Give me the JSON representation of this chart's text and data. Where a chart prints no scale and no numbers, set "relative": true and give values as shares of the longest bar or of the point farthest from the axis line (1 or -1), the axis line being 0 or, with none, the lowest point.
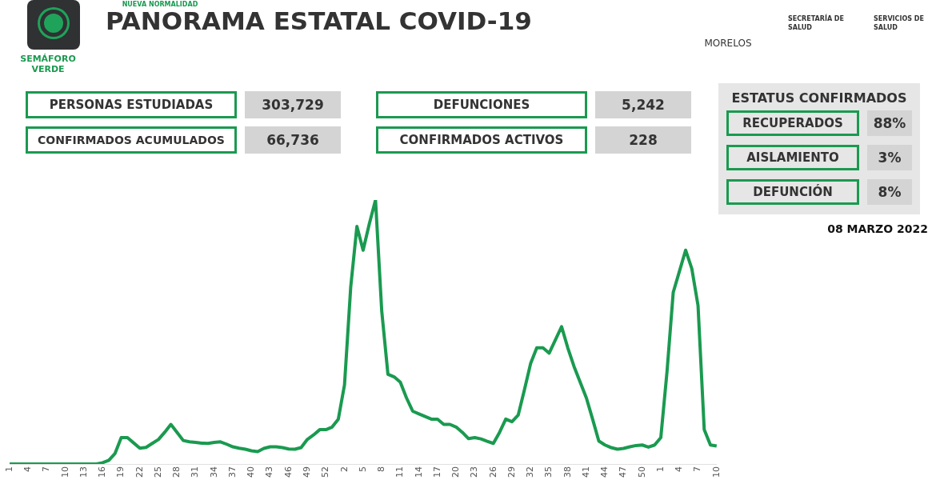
{
  "chart_data": {
    "type": "line",
    "relative": true,
    "title": "PANORAMA ESTATAL COVID-19",
    "color": "#1a9a50",
    "marker": "none",
    "line_style": "solid",
    "grid": false,
    "legend": false,
    "tick_labels": "x",
    "categories": [
      "1",
      null,
      null,
      "4",
      null,
      null,
      "7",
      null,
      null,
      "10",
      null,
      null,
      "13",
      null,
      null,
      "16",
      null,
      null,
      "19",
      null,
      null,
      "22",
      null,
      null,
      "25",
      null,
      null,
      "28",
      null,
      null,
      "31",
      null,
      null,
      "34",
      null,
      null,
      "37",
      null,
      null,
      "40",
      null,
      null,
      "43",
      null,
      null,
      "46",
      null,
      null,
      "49",
      null,
      null,
      "52",
      null,
      null,
      "2",
      null,
      null,
      "5",
      null,
      null,
      "8",
      null,
      null,
      "11",
      null,
      null,
      "14",
      null,
      null,
      "17",
      null,
      null,
      "20",
      null,
      null,
      "23",
      null,
      null,
      "26",
      null,
      null,
      "29",
      null,
      null,
      "32",
      null,
      null,
      "35",
      null,
      null,
      "38",
      null,
      null,
      "41",
      null,
      null,
      "44",
      null,
      null,
      "47",
      null,
      null,
      "50",
      null,
      null,
      "1",
      null,
      null,
      "4",
      null,
      null,
      "7",
      null,
      null,
      "10"
    ],
    "values": [
      0,
      0,
      0,
      0,
      0,
      0,
      0,
      0,
      0,
      0,
      0,
      0,
      0,
      0,
      0,
      0.005,
      0.014,
      0.04,
      0.1,
      0.1,
      0.08,
      0.06,
      0.063,
      0.078,
      0.093,
      0.12,
      0.15,
      0.12,
      0.089,
      0.084,
      0.082,
      0.079,
      0.078,
      0.082,
      0.084,
      0.075,
      0.065,
      0.06,
      0.056,
      0.05,
      0.047,
      0.059,
      0.065,
      0.065,
      0.062,
      0.057,
      0.056,
      0.062,
      0.093,
      0.11,
      0.13,
      0.13,
      0.14,
      0.17,
      0.3,
      0.67,
      0.9,
      0.81,
      0.91,
      1,
      0.58,
      0.34,
      0.33,
      0.31,
      0.25,
      0.2,
      0.19,
      0.18,
      0.17,
      0.17,
      0.15,
      0.15,
      0.14,
      0.12,
      0.096,
      0.1,
      0.095,
      0.086,
      0.078,
      0.12,
      0.17,
      0.16,
      0.185,
      0.28,
      0.38,
      0.44,
      0.44,
      0.42,
      0.47,
      0.52,
      0.44,
      0.37,
      0.31,
      0.25,
      0.17,
      0.087,
      0.072,
      0.062,
      0.056,
      0.059,
      0.065,
      0.07,
      0.072,
      0.064,
      0.072,
      0.1,
      0.35,
      0.65,
      0.73,
      0.81,
      0.74,
      0.6,
      0.13,
      0.072,
      0.068
    ],
    "annotations": [
      "NUEVA NORMALIDAD",
      "SEMÁFORO VERDE",
      "PERSONAS ESTUDIADAS",
      "303,729",
      "CONFIRMADOS ACUMULADOS",
      "66,736",
      "DEFUNCIONES",
      "5,242",
      "CONFIRMADOS ACTIVOS",
      "228",
      "ESTATUS CONFIRMADOS",
      "RECUPERADOS",
      "88%",
      "AISLAMIENTO",
      "3%",
      "DEFUNCIÓN",
      "8%",
      "08 MARZO 2022",
      "MORELOS",
      "SECRETARÍA DE SALUD",
      "SERVICIOS DE SALUD"
    ]
  }
}
